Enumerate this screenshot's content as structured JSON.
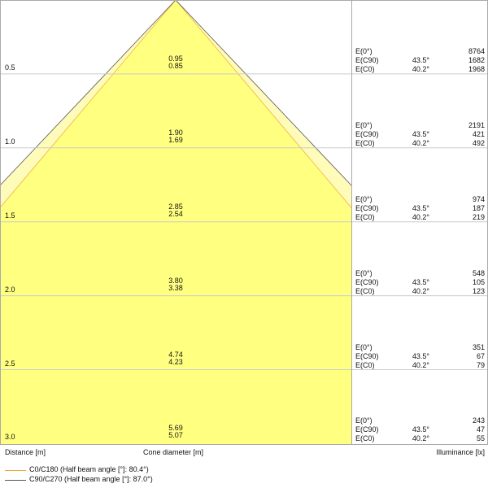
{
  "diagram": {
    "colors": {
      "c0_fill": "#ffff80",
      "c90_fill": "#fffbb8",
      "c0_line": "#f2a63a",
      "c90_line": "#555555",
      "grid": "#cccccc"
    },
    "rows": [
      {
        "distance": "0.5",
        "d_c90": "0.95",
        "d_c0": "0.85",
        "e0_label": "E(0°)",
        "e0": "8764",
        "c90_label": "E(C90)",
        "c90_angle": "43.5°",
        "e_c90": "1682",
        "c0_label": "E(C0)",
        "c0_angle": "40.2°",
        "e_c0": "1968"
      },
      {
        "distance": "1.0",
        "d_c90": "1.90",
        "d_c0": "1.69",
        "e0_label": "E(0°)",
        "e0": "2191",
        "c90_label": "E(C90)",
        "c90_angle": "43.5°",
        "e_c90": "421",
        "c0_label": "E(C0)",
        "c0_angle": "40.2°",
        "e_c0": "492"
      },
      {
        "distance": "1.5",
        "d_c90": "2.85",
        "d_c0": "2.54",
        "e0_label": "E(0°)",
        "e0": "974",
        "c90_label": "E(C90)",
        "c90_angle": "43.5°",
        "e_c90": "187",
        "c0_label": "E(C0)",
        "c0_angle": "40.2°",
        "e_c0": "219"
      },
      {
        "distance": "2.0",
        "d_c90": "3.80",
        "d_c0": "3.38",
        "e0_label": "E(0°)",
        "e0": "548",
        "c90_label": "E(C90)",
        "c90_angle": "43.5°",
        "e_c90": "105",
        "c0_label": "E(C0)",
        "c0_angle": "40.2°",
        "e_c0": "123"
      },
      {
        "distance": "2.5",
        "d_c90": "4.74",
        "d_c0": "4.23",
        "e0_label": "E(0°)",
        "e0": "351",
        "c90_label": "E(C90)",
        "c90_angle": "43.5°",
        "e_c90": "67",
        "c0_label": "E(C0)",
        "c0_angle": "40.2°",
        "e_c0": "79"
      },
      {
        "distance": "3.0",
        "d_c90": "5.69",
        "d_c0": "5.07",
        "e0_label": "E(0°)",
        "e0": "243",
        "c90_label": "E(C90)",
        "c90_angle": "43.5°",
        "e_c90": "47",
        "c0_label": "E(C0)",
        "c0_angle": "40.2°",
        "e_c0": "55"
      }
    ],
    "axis_labels": {
      "distance": "Distance [m]",
      "cone": "Cone diameter [m]",
      "illuminance": "Illuminance [lx]"
    },
    "legend": [
      {
        "label": "C0/C180 (Half beam angle [°]: 80.4°)",
        "color": "#f2a63a"
      },
      {
        "label": "C90/C270 (Half beam angle [°]: 87.0°)",
        "color": "#555555"
      }
    ]
  }
}
